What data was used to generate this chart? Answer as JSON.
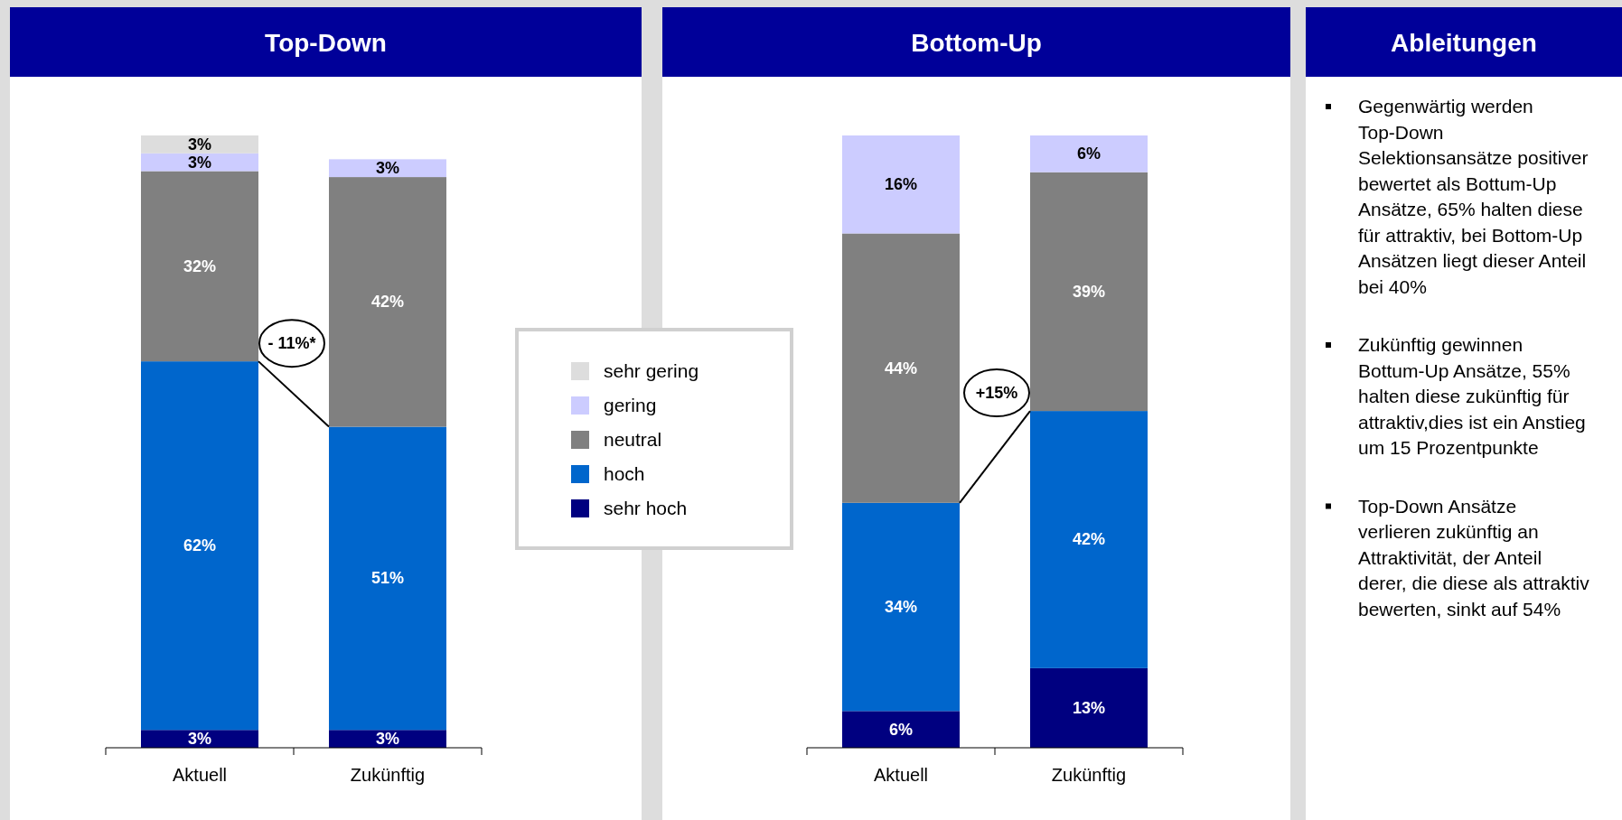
{
  "chart_data": [
    {
      "type": "bar",
      "title": "Top-Down",
      "categories": [
        "Aktuell",
        "Zukünftig"
      ],
      "stacked": true,
      "legend": "right",
      "tick_labels": "x",
      "series": [
        {
          "name": "sehr hoch",
          "color": "#000080",
          "values": [
            3,
            3
          ],
          "value_labels": [
            "3%",
            "3%"
          ]
        },
        {
          "name": "hoch",
          "color": "#0066cc",
          "values": [
            62,
            51
          ],
          "value_labels": [
            "62%",
            "51%"
          ]
        },
        {
          "name": "neutral",
          "color": "#808080",
          "values": [
            32,
            42
          ],
          "value_labels": [
            "32%",
            "42%"
          ]
        },
        {
          "name": "gering",
          "color": "#ccccff",
          "values": [
            3,
            3
          ],
          "value_labels": [
            "3%",
            "3%"
          ]
        },
        {
          "name": "sehr gering",
          "color": "#dddddd",
          "values": [
            3,
            null
          ],
          "value_labels": [
            "3%",
            null
          ]
        }
      ],
      "annotations": [
        "- 11%*"
      ]
    },
    {
      "type": "bar",
      "title": "Bottom-Up",
      "categories": [
        "Aktuell",
        "Zukünftig"
      ],
      "stacked": true,
      "tick_labels": "x",
      "series": [
        {
          "color": "#000080",
          "values": [
            6,
            13
          ],
          "value_labels": [
            "6%",
            "13%"
          ]
        },
        {
          "color": "#0066cc",
          "values": [
            34,
            42
          ],
          "value_labels": [
            "34%",
            "42%"
          ]
        },
        {
          "color": "#808080",
          "values": [
            44,
            39
          ],
          "value_labels": [
            "44%",
            "39%"
          ]
        },
        {
          "color": "#ccccff",
          "values": [
            16,
            6
          ],
          "value_labels": [
            "16%",
            "6%"
          ]
        }
      ],
      "annotations": [
        "+15%"
      ]
    },
    {
      "type": "other",
      "title": "Ableitungen",
      "annotations": [
        "Gegenwärtig werden Top-Down Selektionsansätze positiver bewertet als Bottum-Up Ansätze, 65% halten diese für attraktiv, bei Bottom-Up Ansätzen liegt dieser Anteil bei 40%",
        "Zukünftig gewinnen Bottum-Up Ansätze, 55% halten diese zukünftig für attraktiv,dies ist ein Anstieg um 15 Prozentpunkte",
        "Top-Down Ansätze verlieren zukünftig an Attraktivität, der Anteil derer, die diese als attraktiv bewerten, sinkt auf 54%"
      ]
    }
  ]
}
